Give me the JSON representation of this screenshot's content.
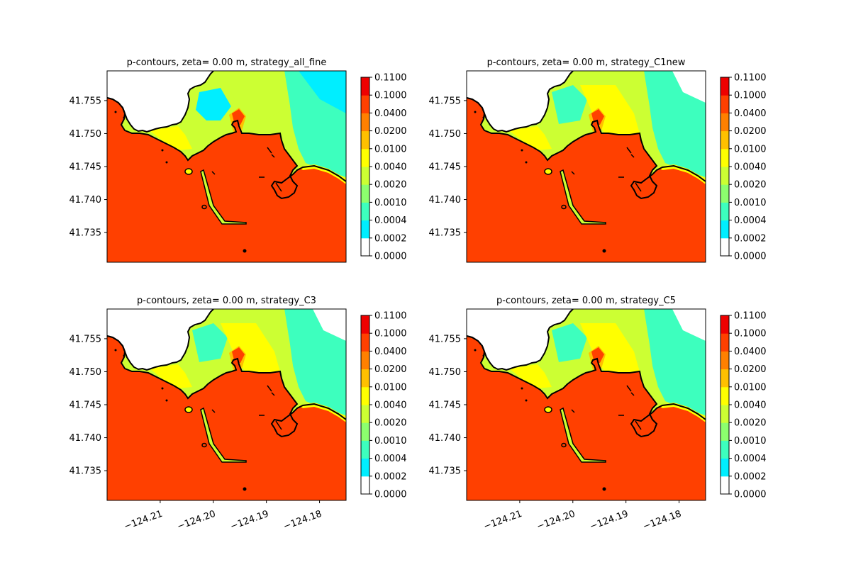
{
  "colorbar": {
    "levels": [
      "0.0000",
      "0.0002",
      "0.0004",
      "0.0010",
      "0.0020",
      "0.0040",
      "0.0100",
      "0.0200",
      "0.0400",
      "0.1000",
      "0.1100"
    ],
    "colors": [
      "#ffffff",
      "#00eeff",
      "#3dffbe",
      "#8cff6e",
      "#ccff33",
      "#ffff00",
      "#ffc000",
      "#ff8000",
      "#ff4000",
      "#ee0000"
    ]
  },
  "axes": {
    "x_ticks": [
      -124.21,
      -124.2,
      -124.19,
      -124.18
    ],
    "x_tick_labels": [
      "−124.21",
      "−124.20",
      "−124.19",
      "−124.18"
    ],
    "y_ticks": [
      41.735,
      41.74,
      41.745,
      41.75,
      41.755
    ],
    "y_tick_labels": [
      "41.735",
      "41.740",
      "41.745",
      "41.750",
      "41.755"
    ]
  },
  "chart_data": [
    {
      "type": "contour",
      "title": "p-contours, zeta= 0.00 m, strategy_all_fine",
      "xlim": [
        -124.22,
        -124.175
      ],
      "ylim": [
        41.7305,
        41.7595
      ],
      "show_x_ticks": false
    },
    {
      "type": "contour",
      "title": "p-contours, zeta= 0.00 m, strategy_C1new",
      "xlim": [
        -124.22,
        -124.175
      ],
      "ylim": [
        41.7305,
        41.7595
      ],
      "show_x_ticks": false
    },
    {
      "type": "contour",
      "title": "p-contours, zeta= 0.00 m, strategy_C3",
      "xlim": [
        -124.22,
        -124.175
      ],
      "ylim": [
        41.7305,
        41.7595
      ],
      "show_x_ticks": true
    },
    {
      "type": "contour",
      "title": "p-contours, zeta= 0.00 m, strategy_C5",
      "xlim": [
        -124.22,
        -124.175
      ],
      "ylim": [
        41.7305,
        41.7595
      ],
      "show_x_ticks": true
    }
  ]
}
